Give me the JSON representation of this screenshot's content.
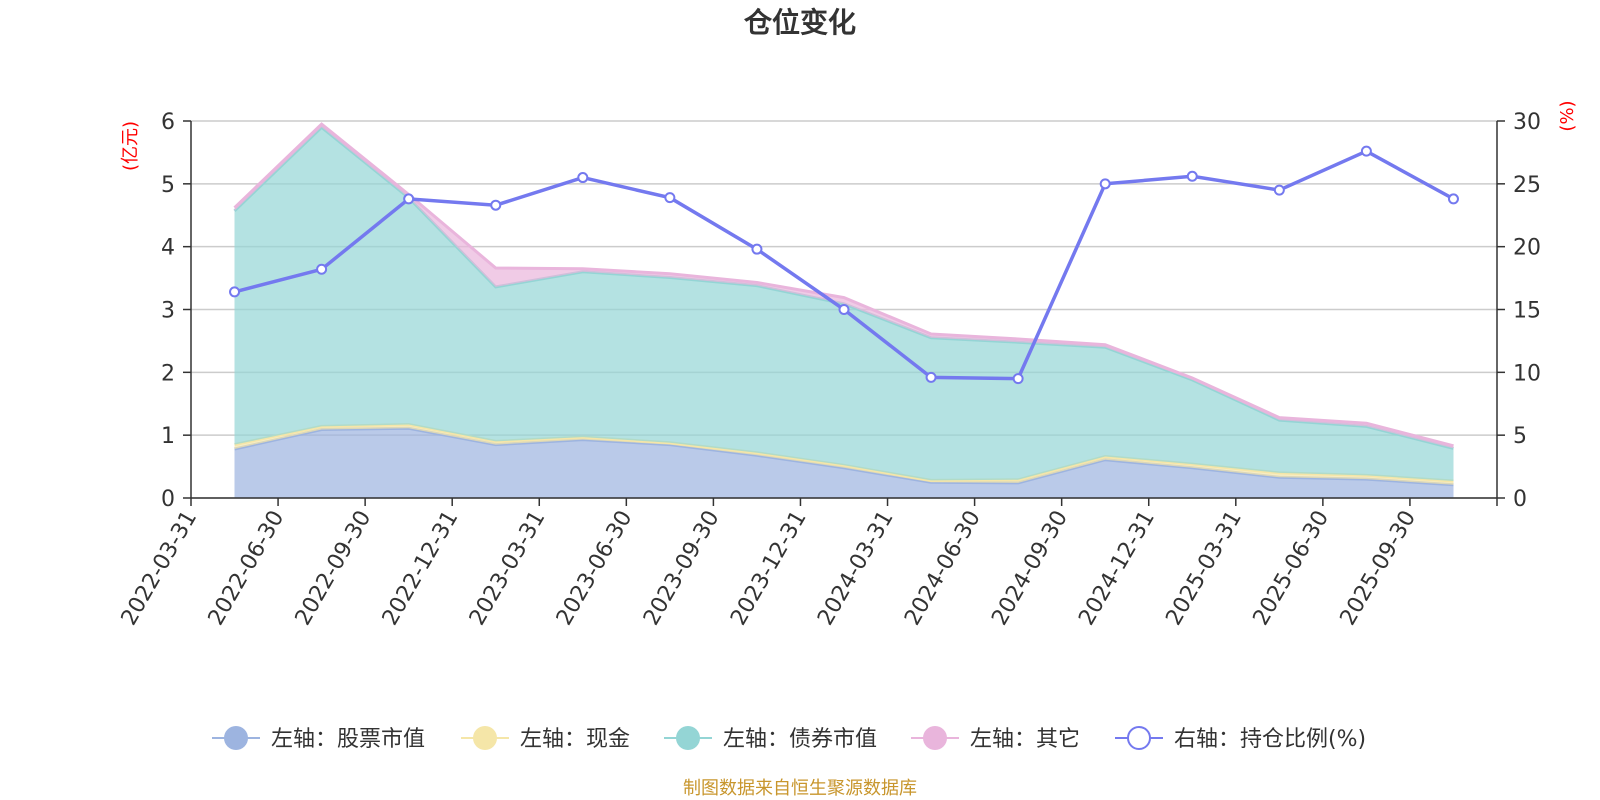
{
  "chart_data": {
    "type": "area",
    "title": "仓位变化",
    "categories": [
      "2022-03-31",
      "2022-06-30",
      "2022-09-30",
      "2022-12-31",
      "2023-03-31",
      "2023-06-30",
      "2023-09-30",
      "2023-12-31",
      "2024-03-31",
      "2024-06-30",
      "2024-09-30",
      "2024-12-31",
      "2025-03-31",
      "2025-06-30",
      "2025-09-30"
    ],
    "left_axis": {
      "unit": "(亿元)",
      "ylim": [
        0,
        6
      ],
      "ticks": [
        "0",
        "1",
        "2",
        "3",
        "4",
        "5",
        "6"
      ]
    },
    "right_axis": {
      "unit": "(%)",
      "ylim": [
        0,
        30
      ],
      "ticks": [
        "0",
        "5",
        "10",
        "15",
        "20",
        "25",
        "30"
      ]
    },
    "stacked": true,
    "series": [
      {
        "name": "左轴：股票市值",
        "axis": "left",
        "color": "#9db4e0",
        "values": [
          0.78,
          1.09,
          1.11,
          0.85,
          0.93,
          0.85,
          0.68,
          0.48,
          0.25,
          0.24,
          0.61,
          0.48,
          0.33,
          0.3,
          0.21
        ]
      },
      {
        "name": "左轴：现金",
        "axis": "left",
        "color": "#f5e6a8",
        "values": [
          0.07,
          0.05,
          0.06,
          0.05,
          0.04,
          0.03,
          0.04,
          0.04,
          0.03,
          0.05,
          0.05,
          0.06,
          0.07,
          0.06,
          0.06
        ]
      },
      {
        "name": "左轴：债券市值",
        "axis": "left",
        "color": "#94d5d5",
        "values": [
          3.72,
          4.76,
          3.61,
          2.46,
          2.63,
          2.63,
          2.66,
          2.57,
          2.27,
          2.19,
          1.74,
          1.34,
          0.84,
          0.78,
          0.52
        ]
      },
      {
        "name": "左轴：其它",
        "axis": "left",
        "color": "#e9b5dc",
        "values": [
          0.05,
          0.05,
          0.05,
          0.3,
          0.05,
          0.06,
          0.05,
          0.1,
          0.06,
          0.05,
          0.04,
          0.03,
          0.04,
          0.05,
          0.04
        ]
      },
      {
        "name": "右轴：持仓比例(%)",
        "axis": "right",
        "type": "line",
        "color": "#7479ef",
        "values": [
          16.4,
          18.2,
          23.8,
          23.3,
          25.5,
          23.9,
          19.8,
          15.0,
          9.6,
          9.5,
          25.0,
          25.6,
          24.5,
          27.6,
          23.8
        ]
      }
    ],
    "grid": true,
    "legend_position": "bottom"
  },
  "footer": {
    "source": "制图数据来自恒生聚源数据库"
  }
}
